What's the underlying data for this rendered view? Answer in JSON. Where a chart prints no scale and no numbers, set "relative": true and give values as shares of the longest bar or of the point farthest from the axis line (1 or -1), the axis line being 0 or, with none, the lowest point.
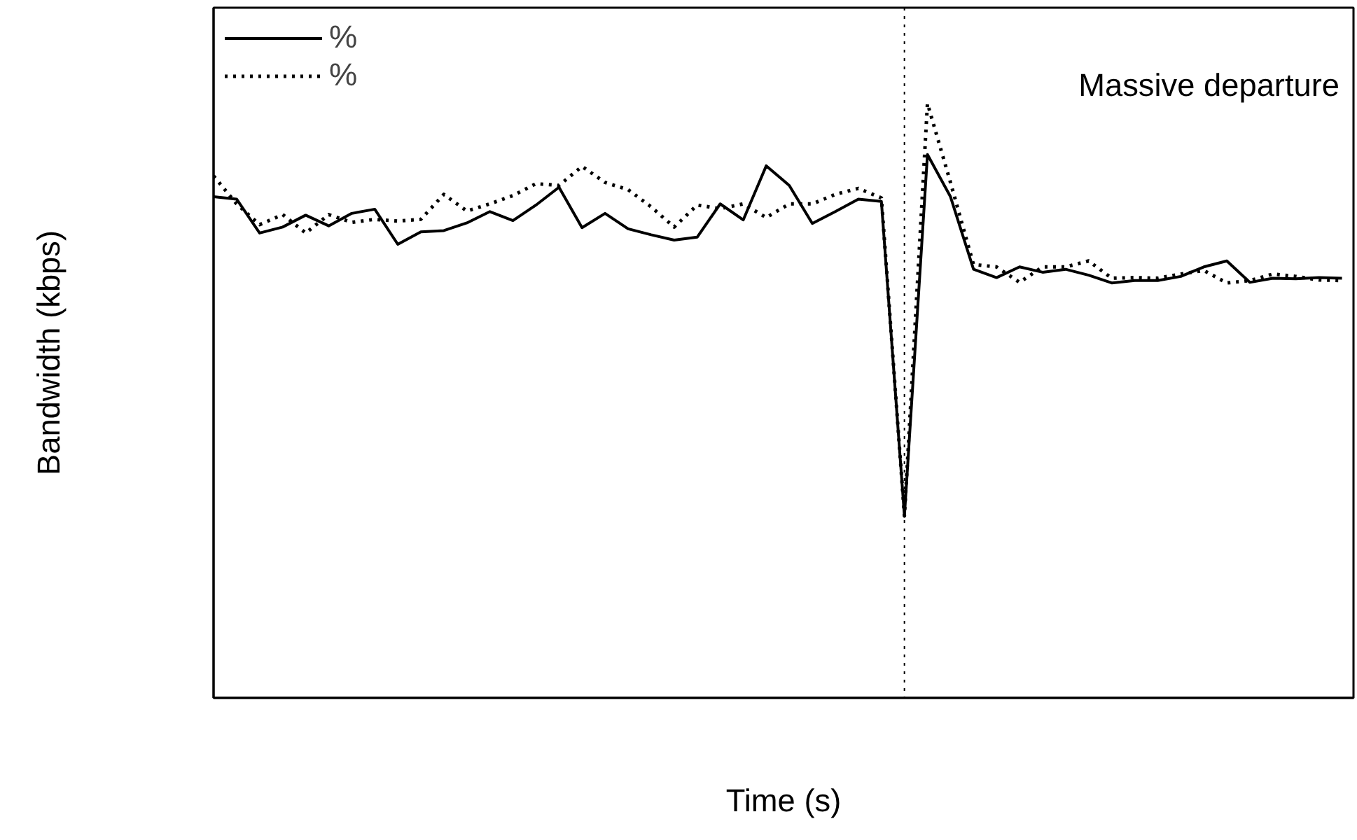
{
  "chart_data": {
    "type": "line",
    "relative": true,
    "xlabel": "Time (s)",
    "ylabel": "Bandwidth (kbps)",
    "categories": [
      null,
      null,
      null,
      null,
      null,
      null,
      null,
      null,
      null,
      null,
      null,
      null,
      null,
      null,
      null,
      null,
      null,
      null,
      null,
      null,
      null,
      null,
      null,
      null,
      null,
      null,
      null,
      null,
      null,
      null,
      null,
      null,
      null,
      null,
      null,
      null,
      null,
      null,
      null,
      null,
      null,
      null,
      null,
      null,
      null,
      null,
      null,
      null,
      null,
      null
    ],
    "series": [
      {
        "name": "%",
        "color": "#000000",
        "line_style": "solid",
        "values": [
          0.843,
          0.839,
          0.782,
          0.792,
          0.812,
          0.794,
          0.815,
          0.822,
          0.763,
          0.784,
          0.786,
          0.799,
          0.818,
          0.803,
          0.829,
          0.859,
          0.791,
          0.815,
          0.789,
          0.779,
          0.77,
          0.775,
          0.831,
          0.804,
          0.895,
          0.862,
          0.798,
          0.818,
          0.839,
          0.835,
          0.306,
          0.914,
          0.843,
          0.721,
          0.707,
          0.725,
          0.716,
          0.721,
          0.711,
          0.698,
          0.702,
          0.702,
          0.709,
          0.725,
          0.735,
          0.699,
          0.706,
          0.705,
          0.707,
          0.706
        ]
      },
      {
        "name": "%",
        "color": "#000000",
        "line_style": "dotted",
        "values": [
          0.878,
          0.831,
          0.796,
          0.813,
          0.782,
          0.813,
          0.8,
          0.805,
          0.802,
          0.805,
          0.847,
          0.819,
          0.831,
          0.845,
          0.865,
          0.862,
          0.894,
          0.867,
          0.855,
          0.826,
          0.792,
          0.829,
          0.823,
          0.831,
          0.808,
          0.831,
          0.831,
          0.847,
          0.857,
          0.841,
          0.306,
          1.0,
          0.867,
          0.729,
          0.725,
          0.699,
          0.725,
          0.725,
          0.735,
          0.706,
          0.707,
          0.706,
          0.713,
          0.719,
          0.698,
          0.702,
          0.713,
          0.709,
          0.703,
          0.702
        ]
      }
    ],
    "annotations": [
      "Massive departure"
    ],
    "legend": "top left"
  }
}
